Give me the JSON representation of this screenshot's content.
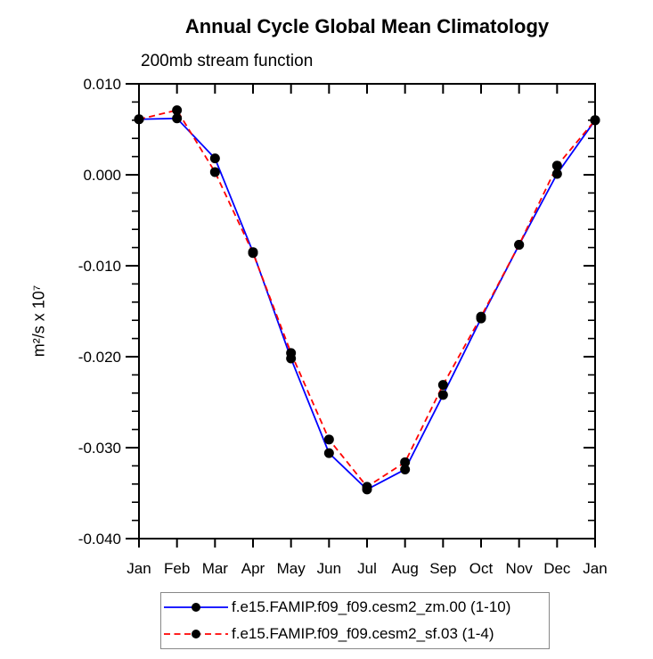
{
  "page": {
    "background": "#ffffff",
    "axis_color": "#000000"
  },
  "chart_data": {
    "type": "line",
    "title": "Annual Cycle Global Mean Climatology",
    "subtitle": "200mb stream function",
    "ylabel": "m²/s x 10⁷",
    "categories": [
      "Jan",
      "Feb",
      "Mar",
      "Apr",
      "May",
      "Jun",
      "Jul",
      "Aug",
      "Sep",
      "Oct",
      "Nov",
      "Dec",
      "Jan"
    ],
    "ylim": [
      -0.04,
      0.01
    ],
    "ytick_values": [
      0.01,
      0.0,
      -0.01,
      -0.02,
      -0.03,
      -0.04
    ],
    "ytick_labels": [
      "0.010",
      "0.000",
      "-0.010",
      "-0.020",
      "-0.030",
      "-0.040"
    ],
    "y_minor_step": 0.002,
    "grid": "off",
    "legend_position": "bottom",
    "marker": "filled-circle",
    "marker_color": "#000000",
    "series": [
      {
        "name": "f.e15.FAMIP.f09_f09.cesm2_zm.00 (1-10)",
        "color": "#0000ff",
        "line_style": "solid",
        "values": [
          0.0061,
          0.0062,
          0.0018,
          -0.0085,
          -0.0202,
          -0.0306,
          -0.0346,
          -0.0324,
          -0.0242,
          -0.0158,
          -0.0077,
          0.0001,
          0.006
        ]
      },
      {
        "name": "f.e15.FAMIP.f09_f09.cesm2_sf.03 (1-4)",
        "color": "#ff0000",
        "line_style": "dashed",
        "values": [
          0.0061,
          0.0071,
          0.0003,
          -0.0086,
          -0.0196,
          -0.0291,
          -0.0343,
          -0.0316,
          -0.0231,
          -0.0156,
          -0.0077,
          0.001,
          0.006
        ]
      }
    ]
  }
}
